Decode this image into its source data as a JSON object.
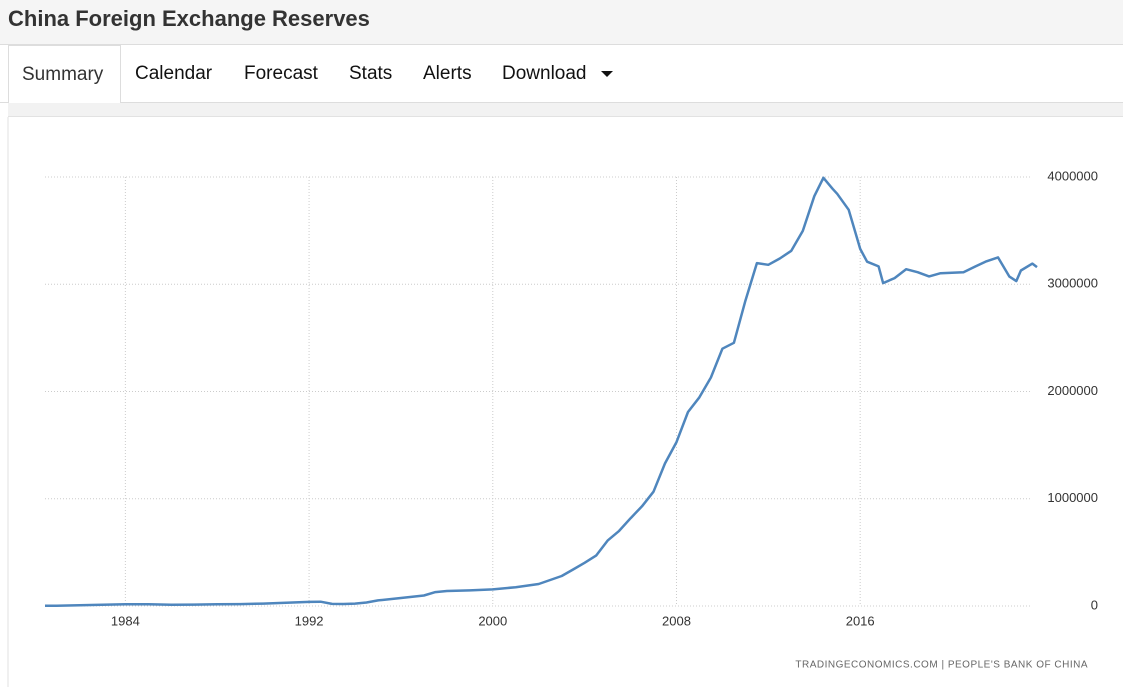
{
  "header": {
    "title": "China Foreign Exchange Reserves"
  },
  "tabs": [
    "Summary",
    "Calendar",
    "Forecast",
    "Stats",
    "Alerts",
    "Download"
  ],
  "chart_data": {
    "type": "line",
    "source": "TRADINGECONOMICS.COM | PEOPLE'S BANK OF CHINA",
    "color": "#4f86bd",
    "grid": true,
    "x": [
      1980.5,
      1981,
      1982,
      1983,
      1984,
      1985,
      1986,
      1987,
      1988,
      1989,
      1990,
      1991,
      1992,
      1992.5,
      1993,
      1993.5,
      1994,
      1994.5,
      1995,
      1996,
      1997,
      1997.5,
      1998,
      1999,
      2000,
      2001,
      2002,
      2003,
      2003.5,
      2004,
      2004.5,
      2005,
      2005.5,
      2006,
      2006.5,
      2007,
      2007.5,
      2008,
      2008.5,
      2009,
      2009.5,
      2010,
      2010.5,
      2011,
      2011.5,
      2012,
      2012.5,
      2013,
      2013.5,
      2014,
      2014.4,
      2014.8,
      2015,
      2015.5,
      2016,
      2016.3,
      2016.8,
      2017,
      2017.5,
      2018,
      2018.5,
      2019,
      2019.5,
      2020,
      2020.5,
      2021,
      2021.5,
      2022,
      2022.5,
      2022.8,
      2023,
      2023.5,
      2023.7
    ],
    "values": [
      2000,
      3000,
      7000,
      12000,
      16000,
      17000,
      12000,
      13000,
      17000,
      18000,
      22000,
      30000,
      38000,
      40000,
      20000,
      19000,
      22000,
      33000,
      52000,
      75000,
      98000,
      130000,
      140000,
      145000,
      155000,
      175000,
      205000,
      280000,
      340000,
      403000,
      470000,
      610000,
      700000,
      819000,
      930000,
      1066000,
      1330000,
      1528000,
      1809000,
      1946000,
      2131000,
      2399000,
      2454000,
      2847000,
      3197000,
      3181000,
      3240000,
      3312000,
      3497000,
      3821000,
      3993000,
      3890000,
      3843000,
      3694000,
      3330000,
      3210000,
      3166000,
      3011000,
      3057000,
      3140000,
      3112000,
      3073000,
      3103000,
      3108000,
      3112000,
      3165000,
      3214000,
      3250000,
      3071000,
      3029000,
      3128000,
      3193000,
      3160000
    ],
    "xlim": [
      1980.5,
      2023.7
    ],
    "xticks": [
      1984,
      1992,
      2000,
      2008,
      2016
    ],
    "ylim": [
      0,
      4000000
    ],
    "yticks": [
      0,
      1000000,
      2000000,
      3000000,
      4000000
    ]
  }
}
